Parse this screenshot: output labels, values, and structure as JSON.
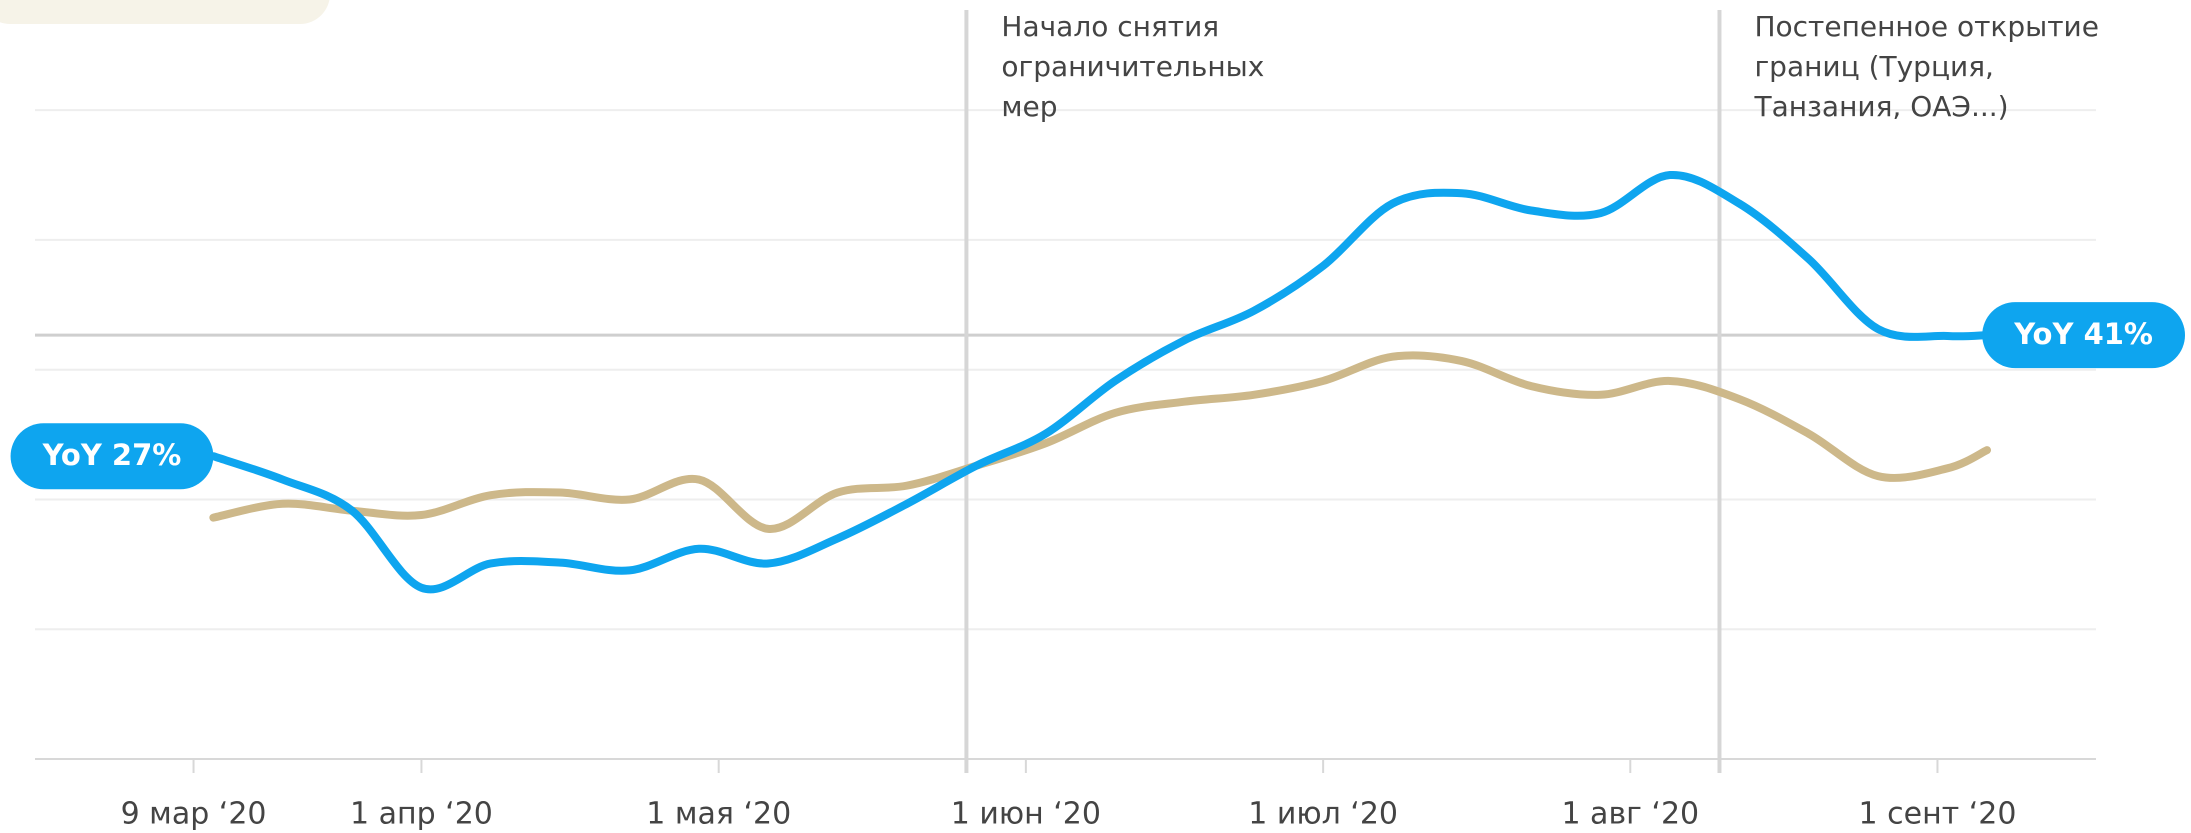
{
  "chart_data": {
    "type": "line",
    "x": [
      "2020-03-11",
      "2020-03-18",
      "2020-03-25",
      "2020-04-01",
      "2020-04-08",
      "2020-04-15",
      "2020-04-22",
      "2020-04-29",
      "2020-05-06",
      "2020-05-13",
      "2020-05-20",
      "2020-05-27",
      "2020-06-03",
      "2020-06-10",
      "2020-06-17",
      "2020-06-24",
      "2020-07-01",
      "2020-07-08",
      "2020-07-15",
      "2020-07-22",
      "2020-07-29",
      "2020-08-05",
      "2020-08-12",
      "2020-08-19",
      "2020-08-26",
      "2020-09-02",
      "2020-09-06"
    ],
    "series": [
      {
        "color": "#0ea5ef",
        "values": [
          27,
          24.3,
          20.7,
          11.8,
          14.6,
          14.7,
          13.8,
          16.3,
          14.6,
          17.5,
          21.5,
          25.9,
          29.6,
          35.7,
          40.4,
          43.8,
          49,
          56.2,
          57.4,
          55.4,
          55.1,
          59.5,
          56.2,
          49.8,
          41.7,
          40.9,
          41
        ],
        "value_labels": [
          "YoY 27%",
          null,
          null,
          null,
          null,
          null,
          null,
          null,
          null,
          null,
          null,
          null,
          null,
          null,
          null,
          null,
          null,
          null,
          null,
          null,
          null,
          null,
          null,
          null,
          null,
          null,
          "YoY 41%"
        ]
      },
      {
        "color": "#cdb88a",
        "values": [
          19.9,
          21.5,
          20.7,
          20.2,
          22.5,
          22.8,
          22,
          24.3,
          18.6,
          22.8,
          23.6,
          25.9,
          28.5,
          32,
          33.3,
          34.1,
          35.7,
          38.5,
          38,
          35.1,
          34.1,
          35.7,
          33.6,
          29.6,
          24.7,
          25.6,
          27.7
        ]
      }
    ],
    "xlim": [
      "2020-02-22",
      "2020-09-17"
    ],
    "xticks": [
      {
        "value": "2020-03-09",
        "label": "9 мар ‘20"
      },
      {
        "value": "2020-04-01",
        "label": "1 апр ‘20"
      },
      {
        "value": "2020-05-01",
        "label": "1 мая ‘20"
      },
      {
        "value": "2020-06-01",
        "label": "1 июн ‘20"
      },
      {
        "value": "2020-07-01",
        "label": "1 июл ‘20"
      },
      {
        "value": "2020-08-01",
        "label": "1 авг ‘20"
      },
      {
        "value": "2020-09-01",
        "label": "1 сент ‘20"
      }
    ],
    "ylim": [
      -8,
      78
    ],
    "yticks": [
      -8,
      7,
      22,
      37,
      52,
      67
    ],
    "grid": true,
    "reference_line": 41,
    "annotations": [
      {
        "x": "2020-05-26",
        "lines": [
          "Начало снятия",
          "ограничительных",
          "мер"
        ]
      },
      {
        "x": "2020-08-10",
        "lines": [
          "Постепенное открытие",
          "границ (Турция,",
          "Танзания, ОАЭ...)"
        ]
      }
    ]
  }
}
